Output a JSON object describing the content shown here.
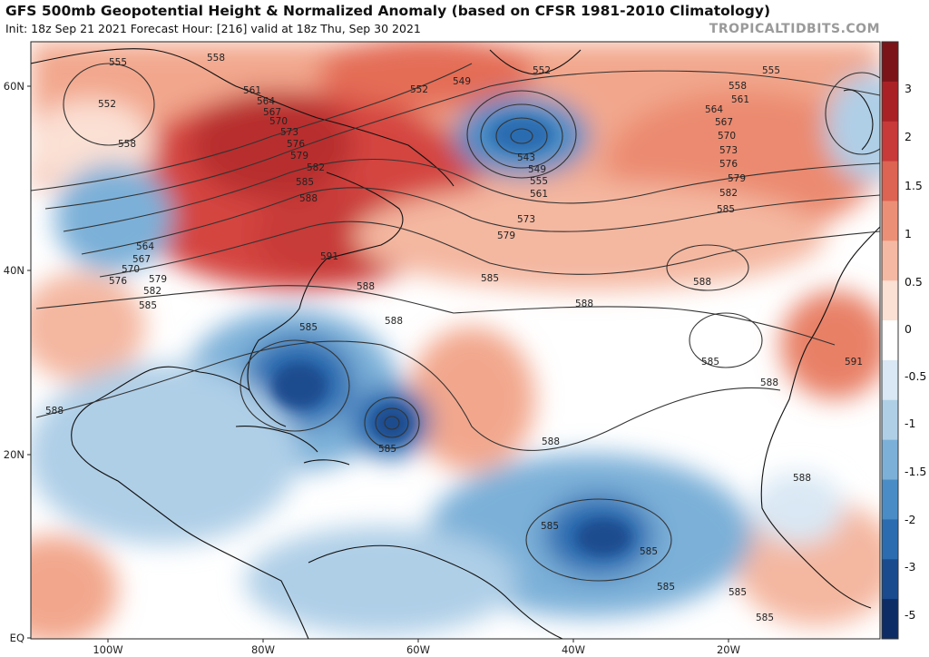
{
  "header": {
    "title": "GFS 500mb Geopotential Height & Normalized Anomaly (based on CFSR 1981-2010 Climatology)",
    "subtitle": "Init: 18z Sep 21 2021   Forecast Hour: [216]   valid at 18z Thu, Sep 30 2021",
    "brand": "TROPICALTIDBITS.COM"
  },
  "axes": {
    "lat_labels": [
      "60N",
      "40N",
      "20N",
      "EQ"
    ],
    "lon_labels": [
      "100W",
      "80W",
      "60W",
      "40W",
      "20W"
    ]
  },
  "colorbar": {
    "ticks": [
      "3",
      "2",
      "1.5",
      "1",
      "0.5",
      "0",
      "-0.5",
      "-1",
      "-1.5",
      "-2",
      "-3",
      "-5"
    ],
    "colors_top_to_bottom": [
      "#7b1418",
      "#a92125",
      "#c8393a",
      "#dd6352",
      "#ec8f77",
      "#f5b9a3",
      "#fbe0d4",
      "#ffffff",
      "#d9e8f4",
      "#afcfe7",
      "#7cb0d8",
      "#4a8dc6",
      "#2b6cb0",
      "#1a4b8e",
      "#0d2c66"
    ]
  },
  "contours": {
    "labels": [
      "555",
      "558",
      "552",
      "561",
      "564",
      "567",
      "570",
      "573",
      "576",
      "579",
      "582",
      "585",
      "588",
      "591",
      "549",
      "543"
    ]
  }
}
